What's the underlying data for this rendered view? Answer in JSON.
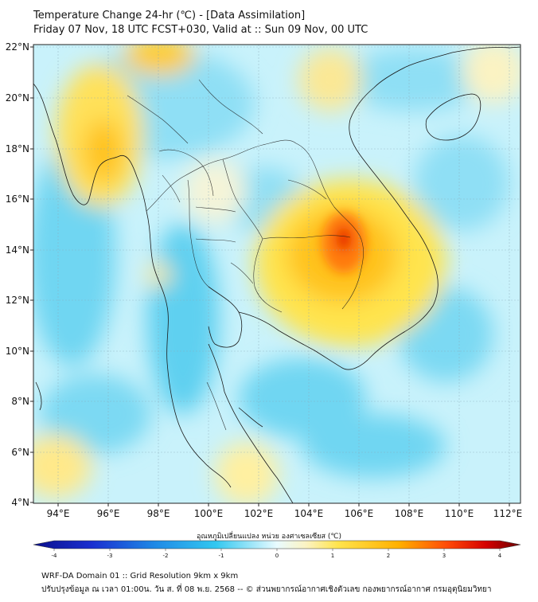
{
  "title_line1": "Temperature Change 24-hr (℃) - [Data Assimilation]",
  "title_line2": "Friday 07 Nov, 18 UTC FCST+030, Valid at :: Sun 09 Nov, 00 UTC",
  "lat_labels": [
    "22°N",
    "20°N",
    "18°N",
    "16°N",
    "14°N",
    "12°N",
    "10°N",
    "8°N",
    "6°N",
    "4°N"
  ],
  "lon_labels": [
    "94°E",
    "96°E",
    "98°E",
    "100°E",
    "102°E",
    "104°E",
    "106°E",
    "108°E",
    "110°E",
    "112°E"
  ],
  "colorbar": {
    "title": "อุณหภูมิเปลี่ยนแปลง หน่วย องศาเซลเซียส (℃)",
    "ticks": [
      "-4",
      "-3",
      "-2",
      "-1",
      "0",
      "1",
      "2",
      "3",
      "4"
    ],
    "range": [
      -4,
      4
    ]
  },
  "footer_line1": "WRF-DA Domain 01 :: Grid Resolution 9km x 9km",
  "footer_line2": "ปรับปรุงข้อมูล ณ เวลา 01:00น. วัน ส. ที่ 08 พ.ย. 2568 -- © ส่วนพยากรณ์อากาศเชิงตัวเลข กองพยากรณ์อากาศ กรมอุตุนิยมวิทยา"
}
